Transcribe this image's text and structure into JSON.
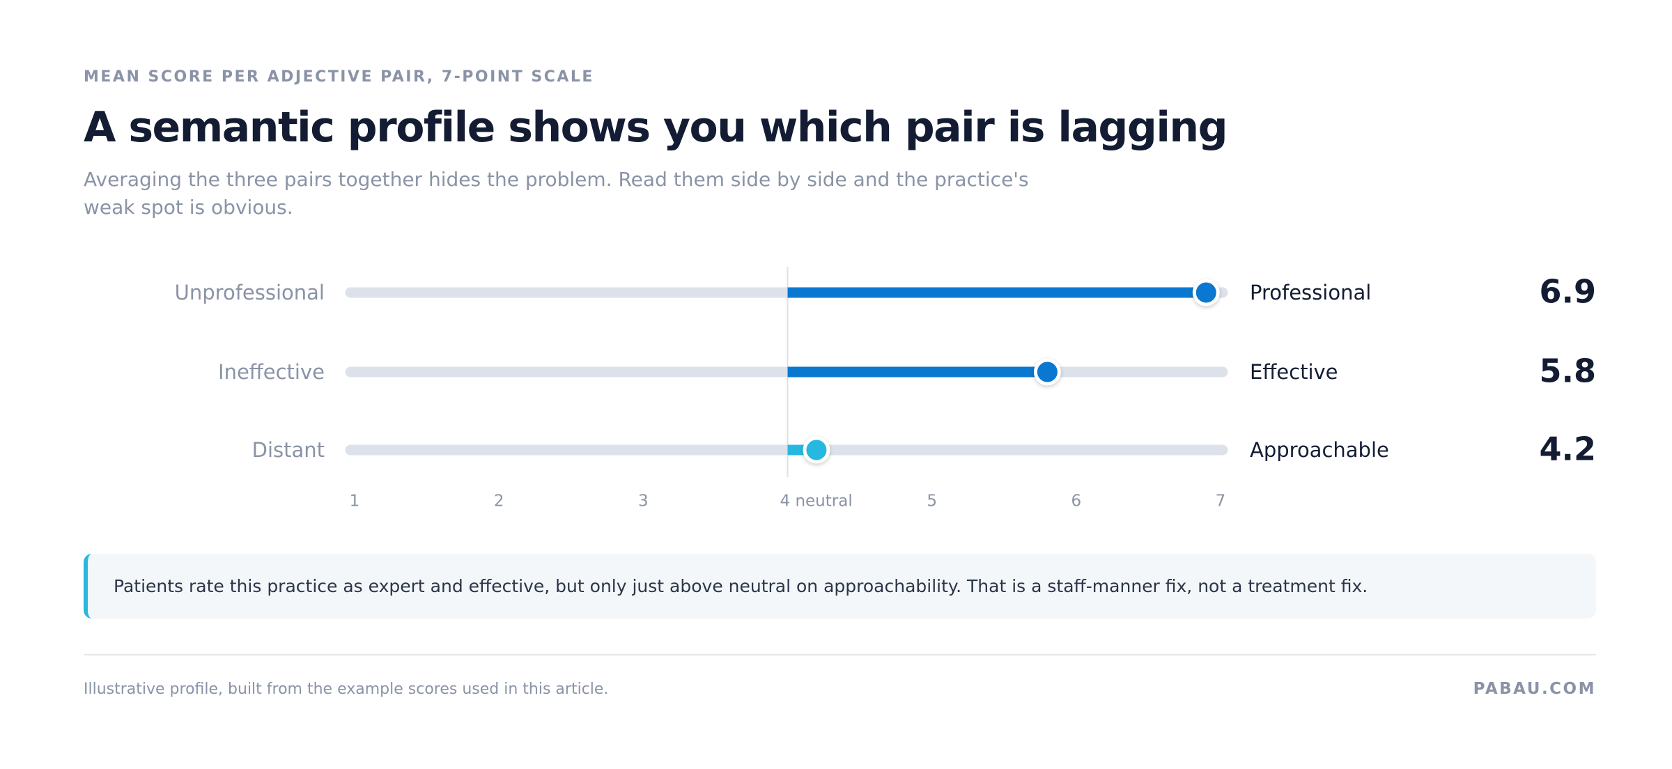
{
  "chart_data": {
    "type": "semantic-profile",
    "eyebrow": "MEAN SCORE PER ADJECTIVE PAIR, 7-POINT SCALE",
    "title": "A semantic profile shows you which pair is lagging",
    "subtitle": "Averaging the three pairs together hides the problem. Read them side by side and the practice's weak spot is obvious.",
    "categories": [
      "Unprofessional",
      "Ineffective",
      "Distant"
    ],
    "right_labels": [
      "Professional",
      "Effective",
      "Approachable"
    ],
    "values": [
      6.9,
      5.8,
      4.2
    ],
    "colors": [
      "#0a78d1",
      "#0a78d1",
      "#27b8e0"
    ],
    "xlim": [
      1,
      7
    ],
    "xticks": [
      1,
      2,
      3,
      {
        "value": 4,
        "label": "4 neutral"
      },
      5,
      6,
      7
    ],
    "baseline": 4,
    "note": "Patients rate this practice as expert and effective, but only just above neutral on approachability. That is a staff-manner fix, not a treatment fix.",
    "source": "Illustrative profile, built from the example scores used in this article.",
    "brand": "PABAU.COM"
  }
}
